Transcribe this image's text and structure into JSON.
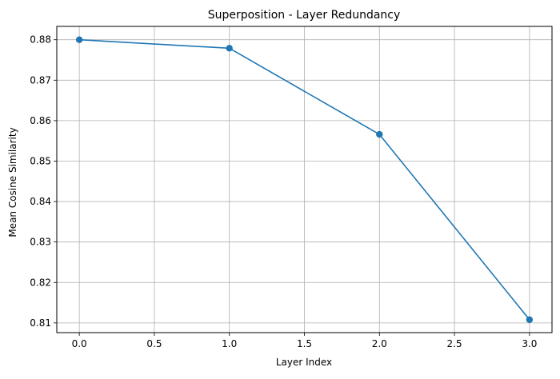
{
  "chart_data": {
    "type": "line",
    "title": "Superposition - Layer Redundancy",
    "xlabel": "Layer Index",
    "ylabel": "Mean Cosine Similarity",
    "xlim": [
      -0.15,
      3.15
    ],
    "ylim": [
      0.8076,
      0.8833
    ],
    "xticks": [
      0.0,
      0.5,
      1.0,
      1.5,
      2.0,
      2.5,
      3.0
    ],
    "xtick_labels": [
      "0.0",
      "0.5",
      "1.0",
      "1.5",
      "2.0",
      "2.5",
      "3.0"
    ],
    "yticks": [
      0.81,
      0.82,
      0.83,
      0.84,
      0.85,
      0.86,
      0.87,
      0.88
    ],
    "ytick_labels": [
      "0.81",
      "0.82",
      "0.83",
      "0.84",
      "0.85",
      "0.86",
      "0.87",
      "0.88"
    ],
    "grid": true,
    "legend": false,
    "series": [
      {
        "color": "#1f77b4",
        "marker": "circle",
        "x": [
          0,
          1,
          2,
          3
        ],
        "y": [
          0.88,
          0.8779,
          0.8566,
          0.8108
        ]
      }
    ]
  }
}
